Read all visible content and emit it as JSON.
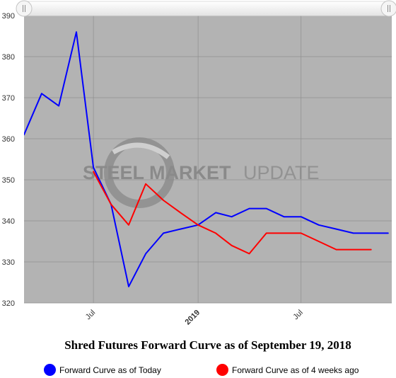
{
  "chart_data": {
    "type": "line",
    "title": "Shred Futures Forward Curve as of September 19, 2018",
    "xlabel": "",
    "ylabel": "",
    "x_tick_labels": [
      "Jul",
      "2019",
      "Jul"
    ],
    "ylim": [
      320,
      390
    ],
    "yticks": [
      320,
      330,
      340,
      350,
      360,
      370,
      380,
      390
    ],
    "grid": true,
    "legend_position": "bottom",
    "watermark": {
      "strong": "STEEL MARKET",
      "light": "UPDATE"
    },
    "series": [
      {
        "name": "Forward Curve as of Today",
        "color": "#0000ff",
        "x": [
          "2018-03-01",
          "2018-04-01",
          "2018-05-01",
          "2018-06-01",
          "2018-07-01",
          "2018-08-01",
          "2018-09-01",
          "2018-10-01",
          "2018-11-01",
          "2018-12-01",
          "2019-01-01",
          "2019-02-01",
          "2019-03-01",
          "2019-04-01",
          "2019-05-01",
          "2019-06-01",
          "2019-07-01",
          "2019-08-01",
          "2019-09-01",
          "2019-10-01",
          "2019-11-01",
          "2019-12-01"
        ],
        "values": [
          361,
          371,
          368,
          386,
          353,
          344,
          324,
          332,
          337,
          338,
          339,
          342,
          341,
          343,
          343,
          341,
          341,
          339,
          338,
          337,
          337,
          337
        ]
      },
      {
        "name": "Forward Curve as of 4 weeks ago",
        "color": "#ff0000",
        "x": [
          "2018-07-01",
          "2018-08-01",
          "2018-09-01",
          "2018-10-01",
          "2018-11-01",
          "2018-12-01",
          "2019-01-01",
          "2019-02-01",
          "2019-03-01",
          "2019-04-01",
          "2019-05-01",
          "2019-06-01",
          "2019-07-01",
          "2019-08-01",
          "2019-09-01",
          "2019-10-01",
          "2019-11-01"
        ],
        "values": [
          352,
          344,
          339,
          349,
          345,
          342,
          339,
          337,
          334,
          332,
          337,
          337,
          337,
          335,
          333,
          333,
          333
        ]
      }
    ]
  },
  "scrollbar": {
    "handle_left_icon": "grip-icon",
    "handle_right_icon": "grip-icon"
  }
}
